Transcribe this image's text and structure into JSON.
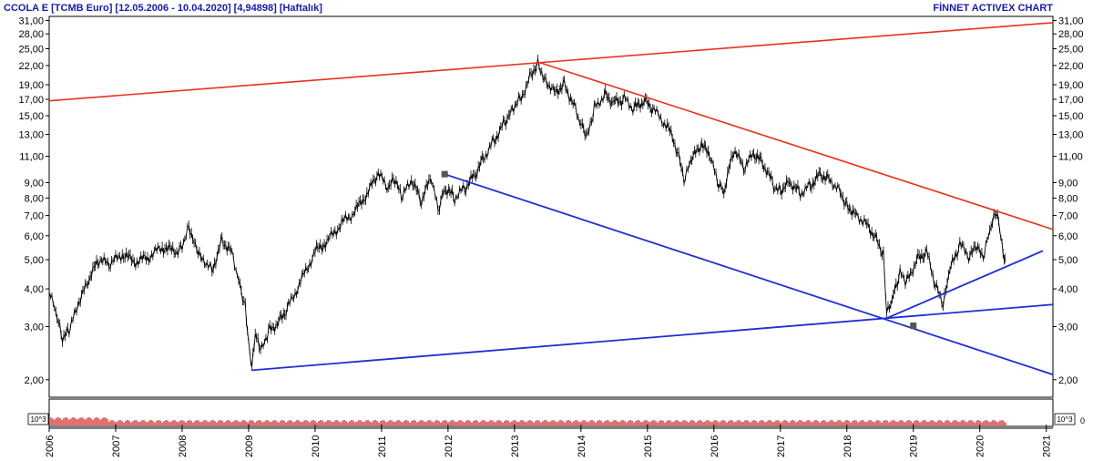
{
  "header": {
    "title": "CCOLA E  [TCMB Euro]  [12.05.2006 - 10.04.2020]  [4,94898]  [Haftalık]",
    "brand": "FİNNET ACTIVEX CHART"
  },
  "volume_panel": {
    "unit_left": "10^3",
    "unit_right": "10^3",
    "zero_label": "0"
  },
  "colors": {
    "price": "#000000",
    "resistance_lines": "#e8321e",
    "support_lines": "#1e2fd2",
    "volume": "#d01010",
    "header_text": "#1a1aa6",
    "grid": "#c8c8c8"
  },
  "chart_data": {
    "type": "line",
    "scale": "log",
    "title": "CCOLA E  [TCMB Euro]  [12.05.2006 - 10.04.2020]  [4,94898]  [Haftalık]",
    "y_ticks": [
      "31,00",
      "28,00",
      "25,00",
      "22,00",
      "19,00",
      "17,00",
      "15,00",
      "13,00",
      "11,00",
      "9,00",
      "8,00",
      "7,00",
      "6,00",
      "5,00",
      "4,00",
      "3,00",
      "2,00"
    ],
    "y_tick_values": [
      31,
      28,
      25,
      22,
      19,
      17,
      15,
      13,
      11,
      9,
      8,
      7,
      6,
      5,
      4,
      3,
      2
    ],
    "ylim": [
      1.75,
      32
    ],
    "x_ticks": [
      "2006",
      "2007",
      "2008",
      "2009",
      "2010",
      "2011",
      "2012",
      "2013",
      "2014",
      "2015",
      "2016",
      "2017",
      "2018",
      "2019",
      "2020",
      "2021"
    ],
    "xlim": [
      2006.0,
      2021.1
    ],
    "grid": false,
    "series": [
      {
        "values": [
          [
            2006.0,
            3.9
          ],
          [
            2006.1,
            3.3
          ],
          [
            2006.2,
            2.7
          ],
          [
            2006.3,
            2.9
          ],
          [
            2006.45,
            3.6
          ],
          [
            2006.6,
            4.3
          ],
          [
            2006.75,
            5.0
          ],
          [
            2006.9,
            4.8
          ],
          [
            2007.1,
            5.2
          ],
          [
            2007.3,
            4.9
          ],
          [
            2007.5,
            5.1
          ],
          [
            2007.7,
            5.5
          ],
          [
            2007.9,
            5.3
          ],
          [
            2008.0,
            5.6
          ],
          [
            2008.1,
            6.5
          ],
          [
            2008.2,
            5.6
          ],
          [
            2008.3,
            5.1
          ],
          [
            2008.45,
            4.6
          ],
          [
            2008.6,
            5.8
          ],
          [
            2008.75,
            5.3
          ],
          [
            2008.85,
            4.3
          ],
          [
            2008.95,
            3.5
          ],
          [
            2009.0,
            2.6
          ],
          [
            2009.05,
            2.2
          ],
          [
            2009.1,
            2.8
          ],
          [
            2009.2,
            2.5
          ],
          [
            2009.3,
            2.9
          ],
          [
            2009.45,
            3.1
          ],
          [
            2009.6,
            3.5
          ],
          [
            2009.8,
            4.3
          ],
          [
            2010.0,
            5.3
          ],
          [
            2010.2,
            5.8
          ],
          [
            2010.4,
            6.6
          ],
          [
            2010.6,
            7.2
          ],
          [
            2010.8,
            8.4
          ],
          [
            2010.95,
            9.6
          ],
          [
            2011.1,
            8.6
          ],
          [
            2011.2,
            9.2
          ],
          [
            2011.3,
            8.0
          ],
          [
            2011.45,
            9.1
          ],
          [
            2011.6,
            7.8
          ],
          [
            2011.75,
            9.4
          ],
          [
            2011.85,
            7.3
          ],
          [
            2011.95,
            8.6
          ],
          [
            2012.1,
            8.0
          ],
          [
            2012.25,
            8.6
          ],
          [
            2012.4,
            9.5
          ],
          [
            2012.55,
            11.0
          ],
          [
            2012.7,
            12.5
          ],
          [
            2012.85,
            14.2
          ],
          [
            2012.95,
            15.8
          ],
          [
            2013.1,
            17.2
          ],
          [
            2013.25,
            20.5
          ],
          [
            2013.35,
            22.6
          ],
          [
            2013.45,
            20.0
          ],
          [
            2013.6,
            18.0
          ],
          [
            2013.75,
            19.0
          ],
          [
            2013.9,
            16.2
          ],
          [
            2014.0,
            14.0
          ],
          [
            2014.1,
            12.8
          ],
          [
            2014.2,
            15.8
          ],
          [
            2014.35,
            17.6
          ],
          [
            2014.5,
            16.6
          ],
          [
            2014.65,
            17.0
          ],
          [
            2014.8,
            15.8
          ],
          [
            2014.95,
            16.8
          ],
          [
            2015.1,
            15.6
          ],
          [
            2015.3,
            13.8
          ],
          [
            2015.45,
            11.5
          ],
          [
            2015.55,
            9.0
          ],
          [
            2015.65,
            10.5
          ],
          [
            2015.8,
            12.0
          ],
          [
            2015.95,
            11.0
          ],
          [
            2016.05,
            9.0
          ],
          [
            2016.15,
            8.3
          ],
          [
            2016.3,
            11.6
          ],
          [
            2016.45,
            10.0
          ],
          [
            2016.6,
            11.2
          ],
          [
            2016.75,
            10.3
          ],
          [
            2016.9,
            8.8
          ],
          [
            2017.0,
            8.5
          ],
          [
            2017.15,
            9.0
          ],
          [
            2017.3,
            8.3
          ],
          [
            2017.45,
            8.8
          ],
          [
            2017.6,
            9.6
          ],
          [
            2017.75,
            9.2
          ],
          [
            2017.9,
            8.4
          ],
          [
            2018.0,
            7.6
          ],
          [
            2018.15,
            7.0
          ],
          [
            2018.3,
            6.6
          ],
          [
            2018.45,
            5.8
          ],
          [
            2018.55,
            5.2
          ],
          [
            2018.6,
            3.3
          ],
          [
            2018.7,
            3.8
          ],
          [
            2018.8,
            4.5
          ],
          [
            2018.9,
            4.2
          ],
          [
            2019.05,
            5.0
          ],
          [
            2019.2,
            5.3
          ],
          [
            2019.35,
            4.0
          ],
          [
            2019.45,
            3.5
          ],
          [
            2019.55,
            4.6
          ],
          [
            2019.7,
            5.6
          ],
          [
            2019.85,
            5.1
          ],
          [
            2019.95,
            5.5
          ],
          [
            2020.05,
            5.0
          ],
          [
            2020.15,
            6.2
          ],
          [
            2020.25,
            7.2
          ],
          [
            2020.3,
            6.4
          ],
          [
            2020.35,
            5.2
          ],
          [
            2020.4,
            4.9
          ]
        ]
      }
    ],
    "trendlines": [
      {
        "role": "resistance",
        "points": [
          [
            2006.0,
            16.8
          ],
          [
            2021.1,
            30.5
          ]
        ]
      },
      {
        "role": "resistance",
        "points": [
          [
            2013.35,
            22.6
          ],
          [
            2021.1,
            6.3
          ]
        ]
      },
      {
        "role": "support",
        "points": [
          [
            2009.05,
            2.15
          ],
          [
            2021.1,
            3.55
          ]
        ]
      },
      {
        "role": "support",
        "points": [
          [
            2011.95,
            9.6
          ],
          [
            2021.1,
            2.08
          ]
        ]
      },
      {
        "role": "support",
        "points": [
          [
            2018.6,
            3.2
          ],
          [
            2020.95,
            5.35
          ]
        ]
      }
    ],
    "markers": [
      [
        2011.95,
        9.6
      ],
      [
        2019.0,
        3.02
      ]
    ]
  }
}
